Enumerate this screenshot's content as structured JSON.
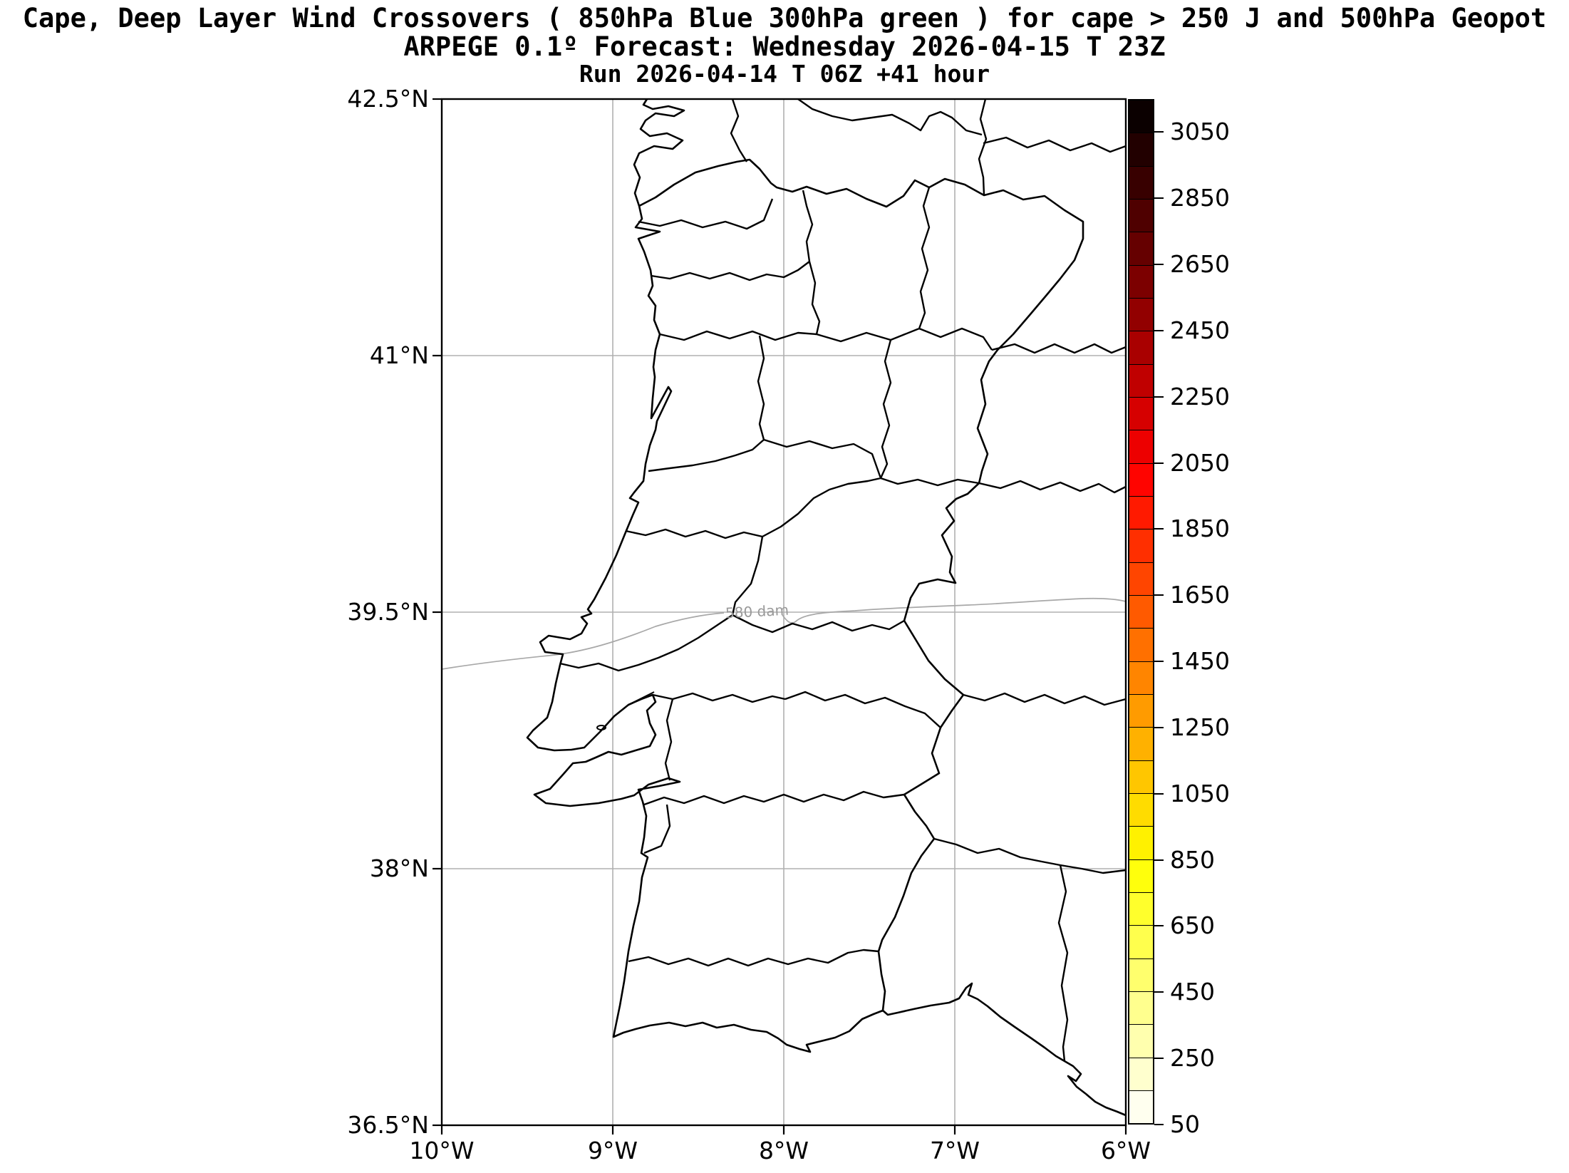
{
  "titles": {
    "line1": "Cape, Deep Layer Wind Crossovers ( 850hPa Blue 300hPa green ) for cape > 250 J and 500hPa Geopot",
    "line2": "ARPEGE 0.1º Forecast: Wednesday 2026-04-15 T 23Z",
    "line3": "Run 2026-04-14 T 06Z +41 hour"
  },
  "map": {
    "x_tick_labels": [
      "10°W",
      "9°W",
      "8°W",
      "7°W",
      "6°W"
    ],
    "y_tick_labels": [
      "42.5°N",
      "41°N",
      "39.5°N",
      "38°N",
      "36.5°N"
    ],
    "contour_label": "580 dam",
    "contour_value_dam": 580,
    "grid_color": "#b0b0b0",
    "coast_color": "#000000",
    "contour_color": "#a8a8a8"
  },
  "colorbar": {
    "units": "J",
    "min": 50,
    "max": 3150,
    "segment_step": 100,
    "tick_values": [
      50,
      250,
      450,
      650,
      850,
      1050,
      1250,
      1450,
      1650,
      1850,
      2050,
      2250,
      2450,
      2650,
      2850,
      3050
    ],
    "segment_colors_bottom_to_top": [
      "#FFFFEF",
      "#FFFFCE",
      "#FFFFAE",
      "#FFFF8E",
      "#FFFF6D",
      "#FFFF4D",
      "#FFFF2C",
      "#FFFF0C",
      "#FFF100",
      "#FFDC00",
      "#FFC600",
      "#FFB100",
      "#FF9B00",
      "#FF8500",
      "#FF7000",
      "#FF5A00",
      "#FF4500",
      "#FF2F00",
      "#FF1A00",
      "#FF0400",
      "#ED0000",
      "#D60000",
      "#C00000",
      "#A90000",
      "#920000",
      "#7C0000",
      "#650000",
      "#4F0000",
      "#380000",
      "#220000",
      "#0B0000"
    ]
  }
}
